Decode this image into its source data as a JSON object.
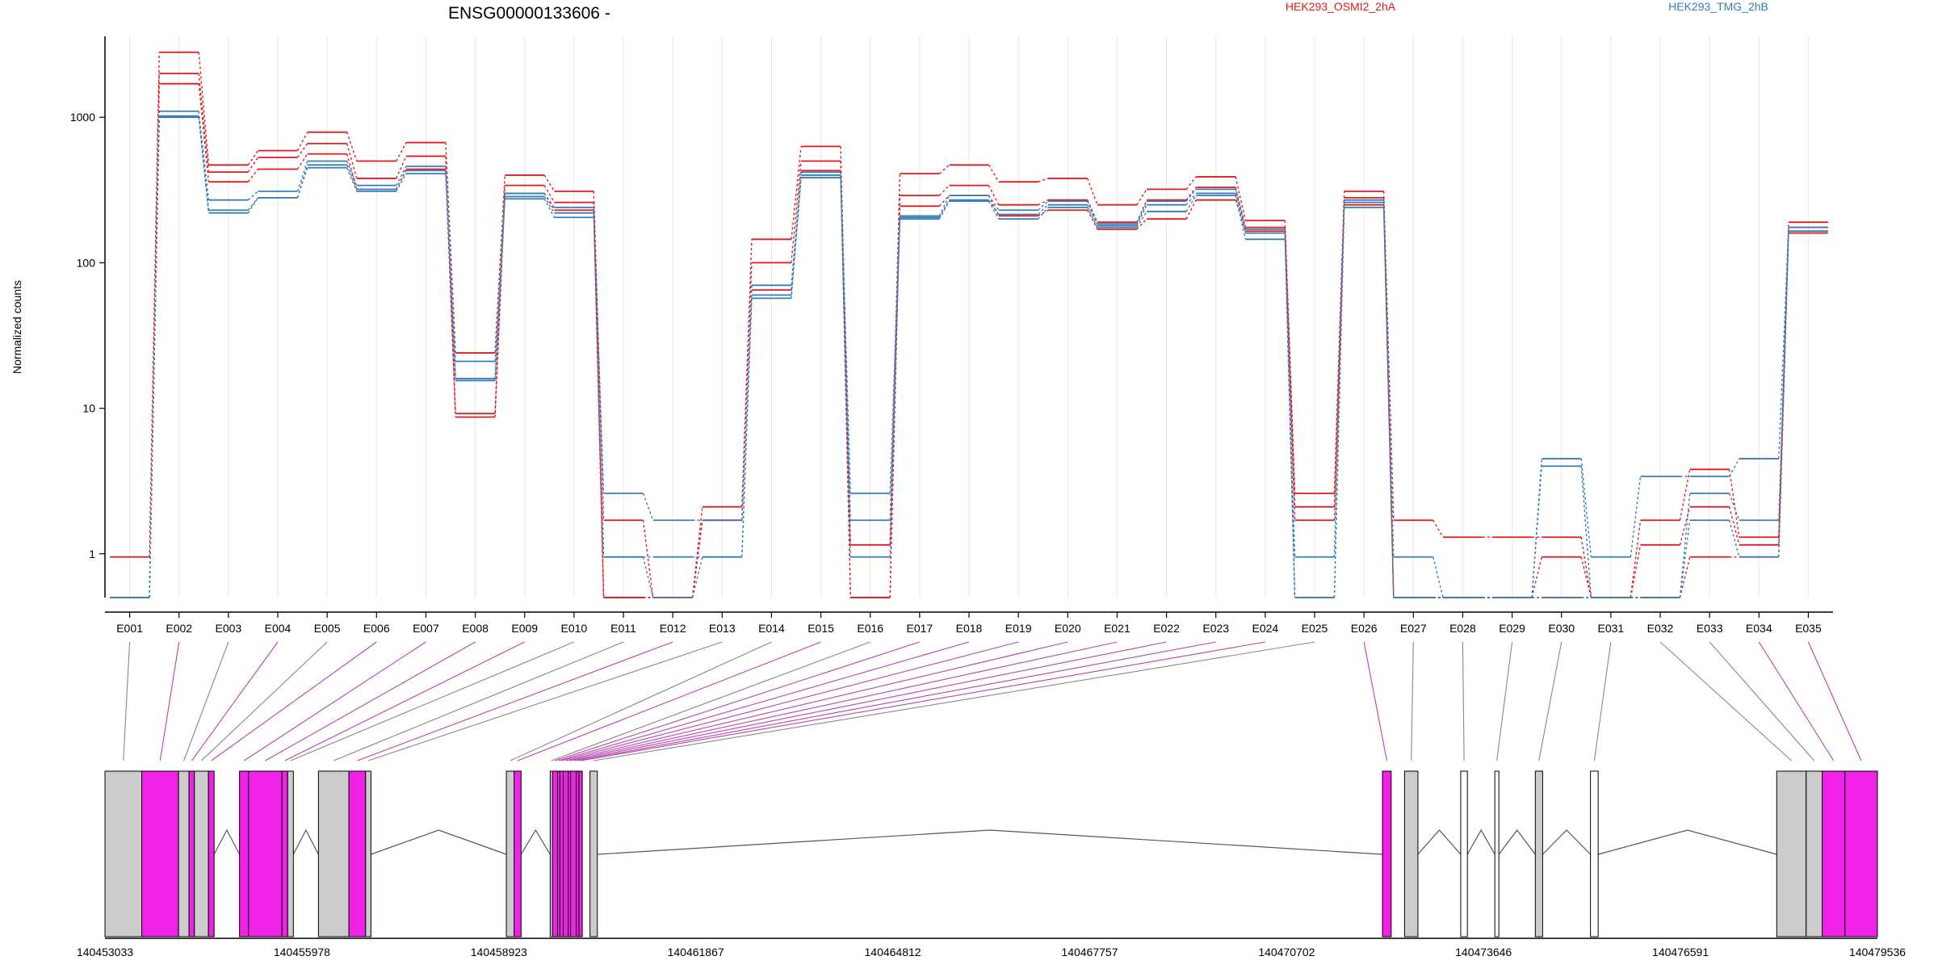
{
  "chart_data": {
    "type": "line",
    "title": "ENSG00000133606 -",
    "xlabel": "",
    "ylabel": "Normalized counts",
    "y_scale": "log",
    "y_ticks": [
      1,
      10,
      100,
      1000
    ],
    "y_tick_labels": [
      "1",
      "10",
      "100",
      "1000"
    ],
    "ylim": [
      0.5,
      3600
    ],
    "grid": "vertical",
    "legend_placement": "top",
    "categories": [
      "E001",
      "E002",
      "E003",
      "E004",
      "E005",
      "E006",
      "E007",
      "E008",
      "E009",
      "E010",
      "E011",
      "E012",
      "E013",
      "E014",
      "E015",
      "E016",
      "E017",
      "E018",
      "E019",
      "E020",
      "E021",
      "E022",
      "E023",
      "E024",
      "E025",
      "E026",
      "E027",
      "E028",
      "E029",
      "E030",
      "E031",
      "E032",
      "E033",
      "E034",
      "E035"
    ],
    "series": [
      {
        "name": "HEK293_OSMI2_2hA",
        "color": "#e41a1c",
        "values": [
          0.95,
          2800,
          470,
          590,
          790,
          500,
          670,
          24,
          400,
          310,
          1.7,
          0.5,
          2.1,
          145,
          630,
          1.15,
          410,
          470,
          360,
          380,
          250,
          320,
          390,
          195,
          2.6,
          310,
          1.7,
          1.3,
          1.3,
          1.3,
          0.5,
          1.7,
          3.8,
          1.3,
          190
        ]
      },
      {
        "name": "HEK293_OSMI2_2hA",
        "color": "#e41a1c",
        "values": [
          0.5,
          2000,
          420,
          530,
          660,
          380,
          540,
          9.2,
          340,
          260,
          0.5,
          0.5,
          1.7,
          100,
          500,
          0.5,
          290,
          340,
          250,
          270,
          190,
          270,
          330,
          175,
          2.1,
          280,
          0.5,
          0.5,
          0.5,
          0.95,
          0.5,
          1.15,
          2.1,
          1.15,
          175
        ]
      },
      {
        "name": "HEK293_OSMI2_2hA",
        "color": "#e41a1c",
        "values": [
          0.5,
          1700,
          360,
          440,
          560,
          320,
          440,
          8.7,
          300,
          230,
          0.5,
          0.5,
          1.7,
          65,
          430,
          0.5,
          245,
          290,
          210,
          230,
          170,
          200,
          270,
          165,
          1.7,
          250,
          0.5,
          0.5,
          0.5,
          0.5,
          0.5,
          0.5,
          0.95,
          0.95,
          160
        ]
      },
      {
        "name": "HEK293_TMG_2hB",
        "color": "#377eb8",
        "values": [
          0.5,
          1100,
          270,
          310,
          500,
          340,
          460,
          21,
          300,
          240,
          2.6,
          1.7,
          1.7,
          70,
          420,
          2.6,
          210,
          290,
          230,
          265,
          185,
          265,
          320,
          170,
          0.95,
          270,
          0.95,
          0.5,
          0.5,
          4.5,
          0.95,
          3.4,
          3.4,
          4.5,
          175
        ]
      },
      {
        "name": "HEK293_TMG_2hB",
        "color": "#377eb8",
        "values": [
          0.5,
          1020,
          230,
          280,
          470,
          320,
          430,
          16,
          285,
          220,
          0.95,
          0.95,
          0.95,
          60,
          400,
          1.7,
          205,
          270,
          215,
          250,
          180,
          250,
          300,
          160,
          0.5,
          260,
          0.5,
          0.5,
          0.5,
          4.0,
          0.5,
          0.5,
          2.6,
          1.7,
          165
        ]
      },
      {
        "name": "HEK293_TMG_2hB",
        "color": "#377eb8",
        "values": [
          0.5,
          1000,
          220,
          280,
          450,
          310,
          410,
          15.5,
          275,
          205,
          0.95,
          0.5,
          0.95,
          57,
          385,
          0.95,
          200,
          265,
          200,
          240,
          175,
          225,
          290,
          145,
          0.5,
          240,
          0.5,
          0.5,
          0.5,
          0.5,
          0.5,
          0.5,
          1.7,
          0.95,
          165
        ]
      }
    ],
    "legend": [
      {
        "label": "HEK293_OSMI2_2hA",
        "color": "#e41a1c"
      },
      {
        "label": "HEK293_TMG_2hB",
        "color": "#377eb8"
      }
    ],
    "gene_model": {
      "coordinate_labels": [
        "140453033",
        "140455978",
        "140458923",
        "140461867",
        "140464812",
        "140467757",
        "140470702",
        "140473646",
        "140476591",
        "140479536"
      ],
      "axis_range": [
        140453033,
        140479536
      ],
      "colors": {
        "highlighted": "#f022e8",
        "normal": "#cccccc",
        "untested": "#ffffff"
      },
      "exons": [
        {
          "id": "E001",
          "start": 140453033,
          "end": 140453583,
          "state": "normal"
        },
        {
          "id": "E002",
          "start": 140453583,
          "end": 140454133,
          "state": "highlighted"
        },
        {
          "id": "E003",
          "start": 140454133,
          "end": 140454290,
          "state": "normal"
        },
        {
          "id": "E004",
          "start": 140454290,
          "end": 140454370,
          "state": "highlighted"
        },
        {
          "id": "E005",
          "start": 140454370,
          "end": 140454580,
          "state": "normal"
        },
        {
          "id": "E006",
          "start": 140454580,
          "end": 140454665,
          "state": "highlighted"
        },
        {
          "id": "E007",
          "start": 140455045,
          "end": 140455180,
          "state": "highlighted"
        },
        {
          "id": "E008",
          "start": 140455180,
          "end": 140455680,
          "state": "highlighted"
        },
        {
          "id": "E009",
          "start": 140455680,
          "end": 140455765,
          "state": "highlighted"
        },
        {
          "id": "E010",
          "start": 140455765,
          "end": 140455850,
          "state": "normal"
        },
        {
          "id": "E011",
          "start": 140456225,
          "end": 140456680,
          "state": "normal"
        },
        {
          "id": "E012",
          "start": 140456680,
          "end": 140456930,
          "state": "highlighted"
        },
        {
          "id": "E013",
          "start": 140456930,
          "end": 140457010,
          "state": "normal"
        },
        {
          "id": "E014",
          "start": 140459035,
          "end": 140459150,
          "state": "normal"
        },
        {
          "id": "E015",
          "start": 140459150,
          "end": 140459255,
          "state": "highlighted"
        },
        {
          "id": "E016",
          "start": 140459690,
          "end": 140459725,
          "state": "normal"
        },
        {
          "id": "E017",
          "start": 140459725,
          "end": 140459800,
          "state": "highlighted"
        },
        {
          "id": "E018",
          "start": 140459800,
          "end": 140459835,
          "state": "highlighted"
        },
        {
          "id": "E019",
          "start": 140459835,
          "end": 140459885,
          "state": "highlighted"
        },
        {
          "id": "E020",
          "start": 140459885,
          "end": 140459960,
          "state": "highlighted"
        },
        {
          "id": "E021",
          "start": 140459960,
          "end": 140459995,
          "state": "highlighted"
        },
        {
          "id": "E022",
          "start": 140459995,
          "end": 140460080,
          "state": "highlighted"
        },
        {
          "id": "E023",
          "start": 140460080,
          "end": 140460120,
          "state": "highlighted"
        },
        {
          "id": "E024",
          "start": 140460120,
          "end": 140460170,
          "state": "highlighted"
        },
        {
          "id": "E025",
          "start": 140460285,
          "end": 140460395,
          "state": "normal"
        },
        {
          "id": "E026",
          "start": 140472135,
          "end": 140472265,
          "state": "highlighted"
        },
        {
          "id": "E027",
          "start": 140472465,
          "end": 140472665,
          "state": "normal"
        },
        {
          "id": "E028",
          "start": 140473305,
          "end": 140473405,
          "state": "untested"
        },
        {
          "id": "E029",
          "start": 140473815,
          "end": 140473875,
          "state": "untested"
        },
        {
          "id": "E030",
          "start": 140474420,
          "end": 140474530,
          "state": "normal"
        },
        {
          "id": "E031",
          "start": 140475245,
          "end": 140475360,
          "state": "untested"
        },
        {
          "id": "E032",
          "start": 140478030,
          "end": 140478470,
          "state": "normal"
        },
        {
          "id": "E033",
          "start": 140478470,
          "end": 140478710,
          "state": "normal"
        },
        {
          "id": "E034",
          "start": 140478710,
          "end": 140479050,
          "state": "highlighted"
        },
        {
          "id": "E035",
          "start": 140479050,
          "end": 140479536,
          "state": "highlighted"
        }
      ],
      "introns": [
        [
          140454665,
          140455045
        ],
        [
          140455850,
          140456225
        ],
        [
          140457010,
          140459035
        ],
        [
          140459255,
          140459690
        ],
        [
          140460395,
          140472135
        ],
        [
          140472665,
          140473305
        ],
        [
          140473405,
          140473815
        ],
        [
          140473875,
          140474420
        ],
        [
          140474530,
          140475245
        ],
        [
          140475360,
          140478030
        ]
      ]
    }
  }
}
